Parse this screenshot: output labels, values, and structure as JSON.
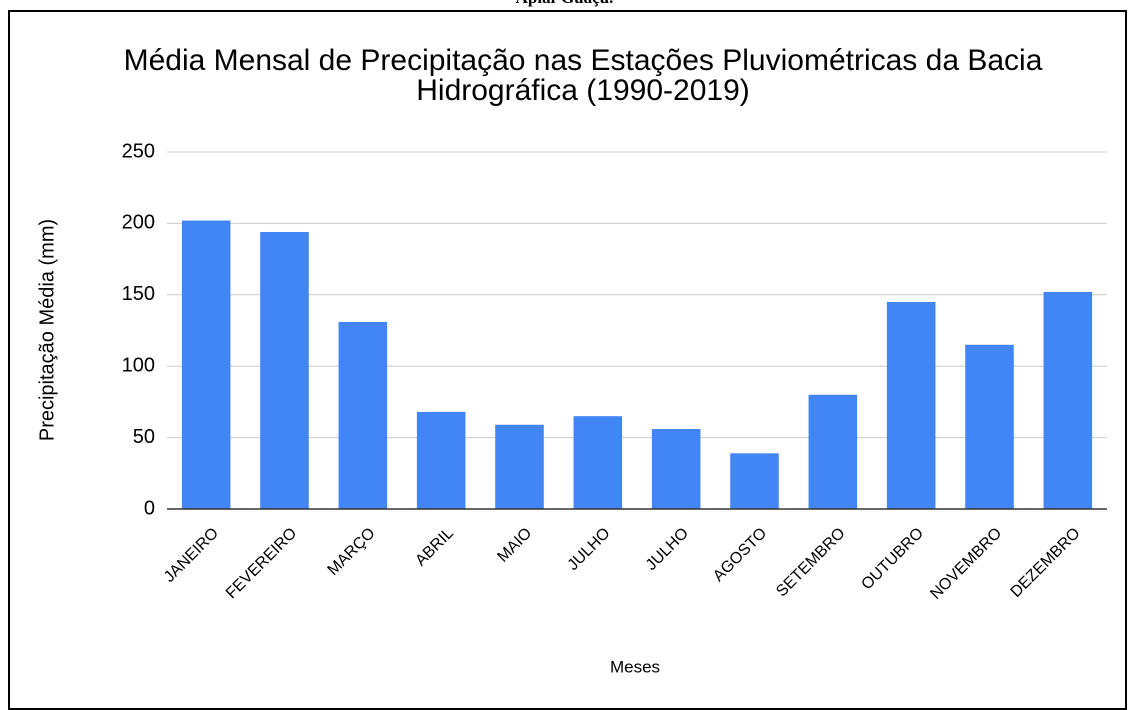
{
  "caption": "Apiaí-Guaçu.",
  "chart_data": {
    "type": "bar",
    "title": "Média Mensal de Precipitação nas Estações Pluviométricas da Bacia Hidrográfica (1990-2019)",
    "x_label": "Meses",
    "y_label": "Precipitação Média (mm)",
    "categories": [
      "JANEIRO",
      "FEVEREIRO",
      "MARÇO",
      "ABRIL",
      "MAIO",
      "JULHO",
      "JULHO",
      "AGOSTO",
      "SETEMBRO",
      "OUTUBRO",
      "NOVEMBRO",
      "DEZEMBRO"
    ],
    "values": [
      202,
      194,
      131,
      68,
      59,
      65,
      56,
      39,
      80,
      145,
      115,
      152
    ],
    "color": "#4285f4",
    "ylim": [
      0,
      250
    ],
    "yticks": [
      0,
      50,
      100,
      150,
      200,
      250
    ],
    "grid": true
  }
}
